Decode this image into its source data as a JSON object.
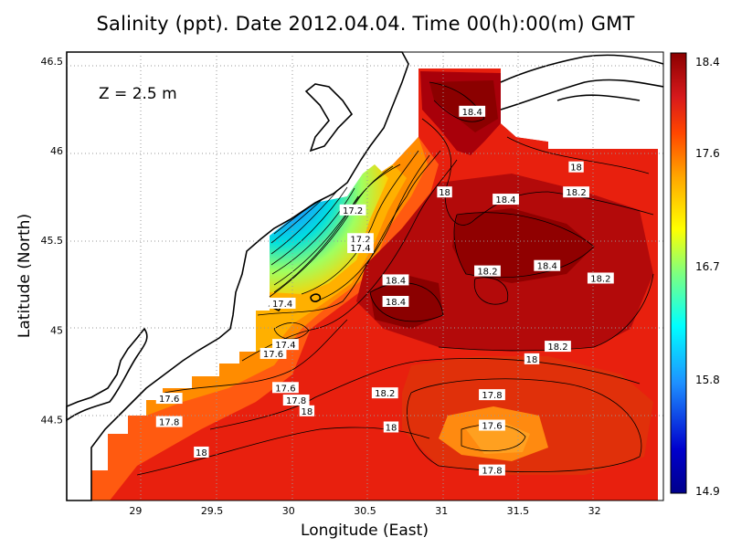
{
  "title": "Salinity (ppt). Date 2012.04.04. Time 00(h):00(m) GMT",
  "depth_label": "Z = 2.5 m",
  "xlabel": "Longitude (East)",
  "ylabel": "Latitude (North)",
  "x_ticks": [
    "29",
    "29.5",
    "30",
    "30.5",
    "31",
    "31.5",
    "32"
  ],
  "y_ticks": [
    "44.5",
    "45",
    "45.5",
    "46",
    "46.5"
  ],
  "colorbar": {
    "ticks": [
      "18.4",
      "17.6",
      "16.7",
      "15.8",
      "14.9"
    ],
    "colors": [
      "#8b0000",
      "#d7191c",
      "#ff4500",
      "#ffa500",
      "#ffff00",
      "#7fff7f",
      "#00ffff",
      "#1e90ff",
      "#0000cd",
      "#00008b"
    ]
  },
  "chart_data": {
    "type": "heatmap",
    "title": "Salinity (ppt). Date 2012.04.04. Time 00(h):00(m) GMT",
    "xlabel": "Longitude (East)",
    "ylabel": "Latitude (North)",
    "xlim": [
      28.55,
      32.45
    ],
    "ylim": [
      44.05,
      46.55
    ],
    "color_range": [
      14.9,
      18.4
    ],
    "contour_labels": [
      {
        "text": "18.4",
        "lon": 31.2,
        "lat": 46.22
      },
      {
        "text": "18",
        "lon": 31.88,
        "lat": 45.91
      },
      {
        "text": "18.2",
        "lon": 31.88,
        "lat": 45.77
      },
      {
        "text": "18",
        "lon": 31.02,
        "lat": 45.77
      },
      {
        "text": "18.4",
        "lon": 31.42,
        "lat": 45.73
      },
      {
        "text": "17.2",
        "lon": 30.42,
        "lat": 45.67
      },
      {
        "text": "17.2",
        "lon": 30.47,
        "lat": 45.51
      },
      {
        "text": "17.4",
        "lon": 30.47,
        "lat": 45.46
      },
      {
        "text": "18.4",
        "lon": 31.69,
        "lat": 45.36
      },
      {
        "text": "18.2",
        "lon": 31.3,
        "lat": 45.33
      },
      {
        "text": "18.2",
        "lon": 32.04,
        "lat": 45.29
      },
      {
        "text": "18.4",
        "lon": 30.7,
        "lat": 45.28
      },
      {
        "text": "18.4",
        "lon": 30.7,
        "lat": 45.16
      },
      {
        "text": "17.4",
        "lon": 29.96,
        "lat": 45.15
      },
      {
        "text": "17.4",
        "lon": 29.98,
        "lat": 44.92
      },
      {
        "text": "18.2",
        "lon": 31.76,
        "lat": 44.91
      },
      {
        "text": "17.6",
        "lon": 29.9,
        "lat": 44.87
      },
      {
        "text": "18",
        "lon": 31.59,
        "lat": 44.84
      },
      {
        "text": "17.6",
        "lon": 29.98,
        "lat": 44.68
      },
      {
        "text": "17.6",
        "lon": 29.22,
        "lat": 44.62
      },
      {
        "text": "18.2",
        "lon": 30.63,
        "lat": 44.65
      },
      {
        "text": "17.8",
        "lon": 31.33,
        "lat": 44.64
      },
      {
        "text": "17.8",
        "lon": 30.05,
        "lat": 44.61
      },
      {
        "text": "18",
        "lon": 30.12,
        "lat": 44.55
      },
      {
        "text": "17.8",
        "lon": 29.22,
        "lat": 44.49
      },
      {
        "text": "18",
        "lon": 30.67,
        "lat": 44.46
      },
      {
        "text": "17.6",
        "lon": 31.33,
        "lat": 44.47
      },
      {
        "text": "18",
        "lon": 29.43,
        "lat": 44.32
      },
      {
        "text": "17.8",
        "lon": 31.33,
        "lat": 44.22
      }
    ]
  }
}
